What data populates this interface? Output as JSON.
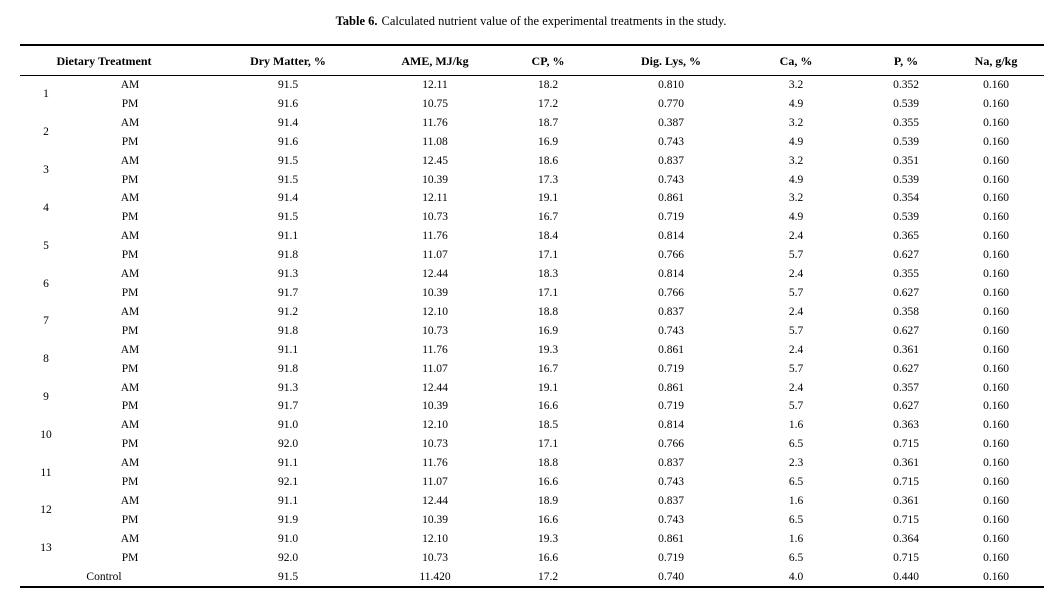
{
  "caption": {
    "label": "Table 6.",
    "text": "Calculated nutrient value of the experimental treatments in the study."
  },
  "colors": {
    "background": "#ffffff",
    "text": "#000000",
    "rule": "#000000"
  },
  "table": {
    "header": {
      "treatment": "Dietary Treatment",
      "columns": [
        "Dry Matter, %",
        "AME, MJ/kg",
        "CP, %",
        "Dig. Lys, %",
        "Ca, %",
        "P, %",
        "Na, g/kg"
      ]
    },
    "treatments": [
      {
        "id": "1",
        "rows": [
          {
            "time": "AM",
            "values": [
              "91.5",
              "12.11",
              "18.2",
              "0.810",
              "3.2",
              "0.352",
              "0.160"
            ]
          },
          {
            "time": "PM",
            "values": [
              "91.6",
              "10.75",
              "17.2",
              "0.770",
              "4.9",
              "0.539",
              "0.160"
            ]
          }
        ]
      },
      {
        "id": "2",
        "rows": [
          {
            "time": "AM",
            "values": [
              "91.4",
              "11.76",
              "18.7",
              "0.387",
              "3.2",
              "0.355",
              "0.160"
            ]
          },
          {
            "time": "PM",
            "values": [
              "91.6",
              "11.08",
              "16.9",
              "0.743",
              "4.9",
              "0.539",
              "0.160"
            ]
          }
        ]
      },
      {
        "id": "3",
        "rows": [
          {
            "time": "AM",
            "values": [
              "91.5",
              "12.45",
              "18.6",
              "0.837",
              "3.2",
              "0.351",
              "0.160"
            ]
          },
          {
            "time": "PM",
            "values": [
              "91.5",
              "10.39",
              "17.3",
              "0.743",
              "4.9",
              "0.539",
              "0.160"
            ]
          }
        ]
      },
      {
        "id": "4",
        "rows": [
          {
            "time": "AM",
            "values": [
              "91.4",
              "12.11",
              "19.1",
              "0.861",
              "3.2",
              "0.354",
              "0.160"
            ]
          },
          {
            "time": "PM",
            "values": [
              "91.5",
              "10.73",
              "16.7",
              "0.719",
              "4.9",
              "0.539",
              "0.160"
            ]
          }
        ]
      },
      {
        "id": "5",
        "rows": [
          {
            "time": "AM",
            "values": [
              "91.1",
              "11.76",
              "18.4",
              "0.814",
              "2.4",
              "0.365",
              "0.160"
            ]
          },
          {
            "time": "PM",
            "values": [
              "91.8",
              "11.07",
              "17.1",
              "0.766",
              "5.7",
              "0.627",
              "0.160"
            ]
          }
        ]
      },
      {
        "id": "6",
        "rows": [
          {
            "time": "AM",
            "values": [
              "91.3",
              "12.44",
              "18.3",
              "0.814",
              "2.4",
              "0.355",
              "0.160"
            ]
          },
          {
            "time": "PM",
            "values": [
              "91.7",
              "10.39",
              "17.1",
              "0.766",
              "5.7",
              "0.627",
              "0.160"
            ]
          }
        ]
      },
      {
        "id": "7",
        "rows": [
          {
            "time": "AM",
            "values": [
              "91.2",
              "12.10",
              "18.8",
              "0.837",
              "2.4",
              "0.358",
              "0.160"
            ]
          },
          {
            "time": "PM",
            "values": [
              "91.8",
              "10.73",
              "16.9",
              "0.743",
              "5.7",
              "0.627",
              "0.160"
            ]
          }
        ]
      },
      {
        "id": "8",
        "rows": [
          {
            "time": "AM",
            "values": [
              "91.1",
              "11.76",
              "19.3",
              "0.861",
              "2.4",
              "0.361",
              "0.160"
            ]
          },
          {
            "time": "PM",
            "values": [
              "91.8",
              "11.07",
              "16.7",
              "0.719",
              "5.7",
              "0.627",
              "0.160"
            ]
          }
        ]
      },
      {
        "id": "9",
        "rows": [
          {
            "time": "AM",
            "values": [
              "91.3",
              "12.44",
              "19.1",
              "0.861",
              "2.4",
              "0.357",
              "0.160"
            ]
          },
          {
            "time": "PM",
            "values": [
              "91.7",
              "10.39",
              "16.6",
              "0.719",
              "5.7",
              "0.627",
              "0.160"
            ]
          }
        ]
      },
      {
        "id": "10",
        "rows": [
          {
            "time": "AM",
            "values": [
              "91.0",
              "12.10",
              "18.5",
              "0.814",
              "1.6",
              "0.363",
              "0.160"
            ]
          },
          {
            "time": "PM",
            "values": [
              "92.0",
              "10.73",
              "17.1",
              "0.766",
              "6.5",
              "0.715",
              "0.160"
            ]
          }
        ]
      },
      {
        "id": "11",
        "rows": [
          {
            "time": "AM",
            "values": [
              "91.1",
              "11.76",
              "18.8",
              "0.837",
              "2.3",
              "0.361",
              "0.160"
            ]
          },
          {
            "time": "PM",
            "values": [
              "92.1",
              "11.07",
              "16.6",
              "0.743",
              "6.5",
              "0.715",
              "0.160"
            ]
          }
        ]
      },
      {
        "id": "12",
        "rows": [
          {
            "time": "AM",
            "values": [
              "91.1",
              "12.44",
              "18.9",
              "0.837",
              "1.6",
              "0.361",
              "0.160"
            ]
          },
          {
            "time": "PM",
            "values": [
              "91.9",
              "10.39",
              "16.6",
              "0.743",
              "6.5",
              "0.715",
              "0.160"
            ]
          }
        ]
      },
      {
        "id": "13",
        "rows": [
          {
            "time": "AM",
            "values": [
              "91.0",
              "12.10",
              "19.3",
              "0.861",
              "1.6",
              "0.364",
              "0.160"
            ]
          },
          {
            "time": "PM",
            "values": [
              "92.0",
              "10.73",
              "16.6",
              "0.719",
              "6.5",
              "0.715",
              "0.160"
            ]
          }
        ]
      }
    ],
    "control": {
      "label": "Control",
      "values": [
        "91.5",
        "11.420",
        "17.2",
        "0.740",
        "4.0",
        "0.440",
        "0.160"
      ]
    }
  }
}
